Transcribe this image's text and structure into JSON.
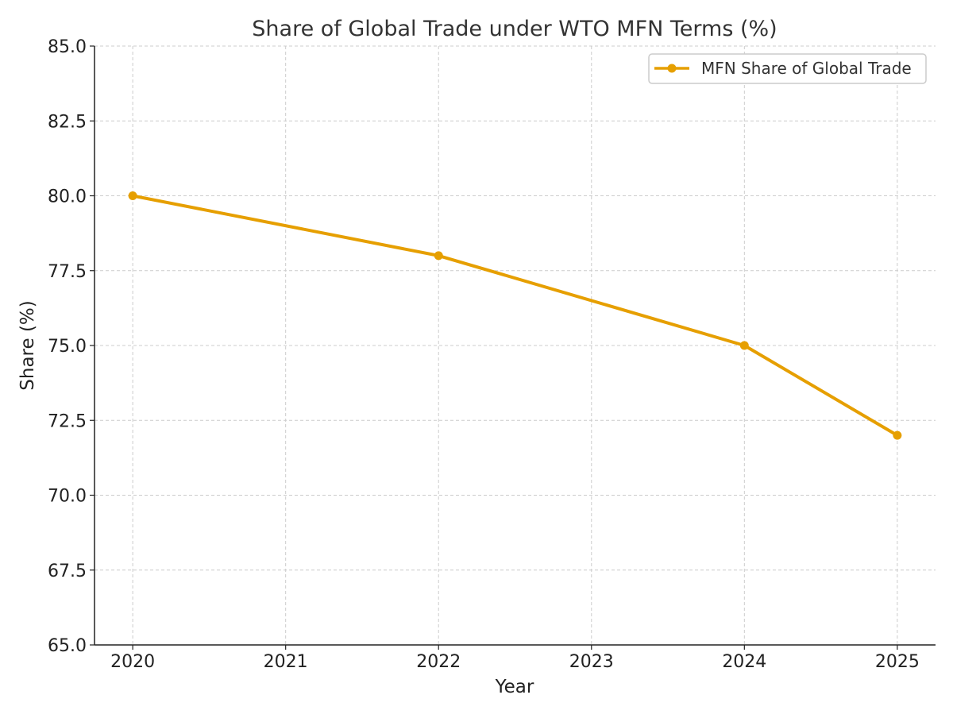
{
  "chart_data": {
    "type": "line",
    "title": "Share of Global Trade under WTO MFN Terms (%)",
    "xlabel": "Year",
    "ylabel": "Share (%)",
    "x": [
      2020,
      2022,
      2024,
      2025
    ],
    "xticks": [
      "2020",
      "2021",
      "2022",
      "2023",
      "2024",
      "2025"
    ],
    "xlim": [
      2019.75,
      2025.25
    ],
    "ylim": [
      65,
      85
    ],
    "yticks": [
      "65.0",
      "67.5",
      "70.0",
      "72.5",
      "75.0",
      "77.5",
      "80.0",
      "82.5",
      "85.0"
    ],
    "grid": true,
    "legend_position": "top-right",
    "series": [
      {
        "name": "MFN Share of Global Trade",
        "values": [
          80,
          78,
          75,
          72
        ],
        "color": "#E69F00",
        "marker": "circle"
      }
    ]
  }
}
